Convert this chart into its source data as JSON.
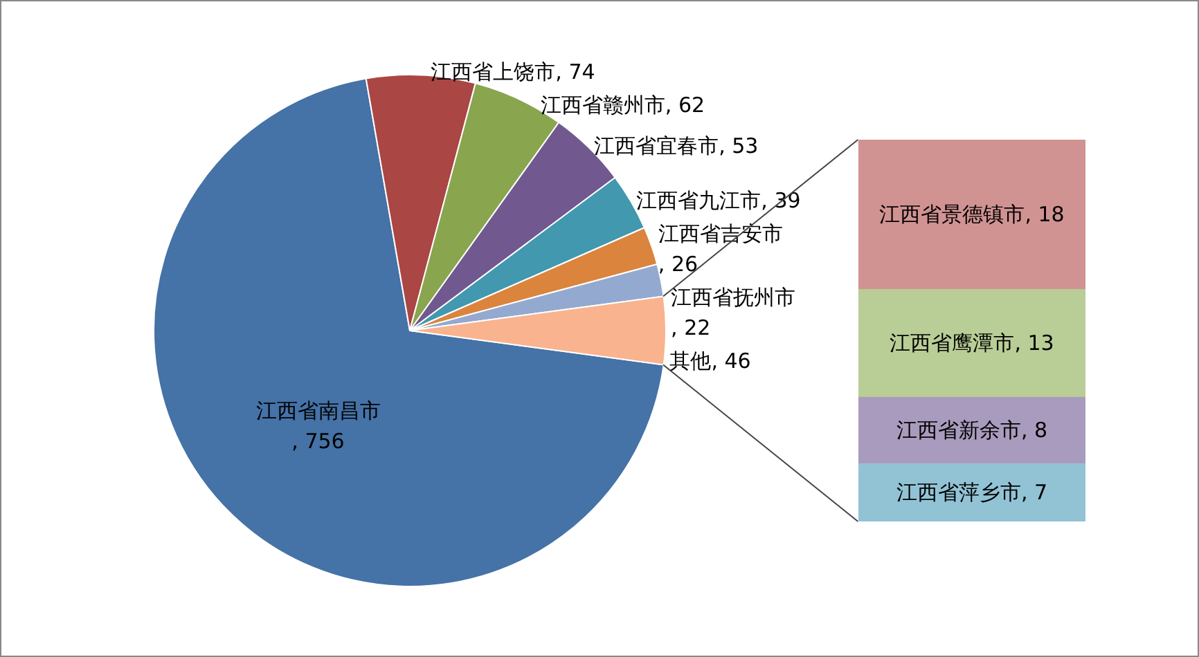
{
  "chart_data": [
    {
      "type": "pie",
      "categories": [
        "江西省南昌市",
        "江西省上饶市",
        "江西省赣州市",
        "江西省宜春市",
        "江西省九江市",
        "江西省吉安市",
        "江西省抚州市",
        "其他"
      ],
      "values": [
        756,
        74,
        62,
        53,
        39,
        26,
        22,
        46
      ],
      "colors": [
        "#4572a7",
        "#aa4643",
        "#89a54e",
        "#71588f",
        "#4198af",
        "#db843d",
        "#93a9cf",
        "#f9b38e"
      ],
      "value_labels": [
        ", 756",
        ", 74",
        ", 62",
        ", 53",
        ", 39",
        ", 26",
        ", 22",
        ", 46"
      ],
      "legend": false
    },
    {
      "type": "bar",
      "stacked": true,
      "categories": [
        null
      ],
      "series": [
        {
          "name": "江西省萍乡市",
          "color": "#91c3d5",
          "values": [
            7
          ],
          "value_labels": [
            ", 7"
          ]
        },
        {
          "name": "江西省新余市",
          "color": "#a99bbd",
          "values": [
            8
          ],
          "value_labels": [
            ", 8"
          ]
        },
        {
          "name": "江西省鹰潭市",
          "color": "#b9cd96",
          "values": [
            13
          ],
          "value_labels": [
            ", 13"
          ]
        },
        {
          "name": "江西省景德镇市",
          "color": "#d19392",
          "values": [
            18
          ],
          "value_labels": [
            ", 18"
          ]
        }
      ],
      "tick_labels": false,
      "legend": false
    }
  ]
}
